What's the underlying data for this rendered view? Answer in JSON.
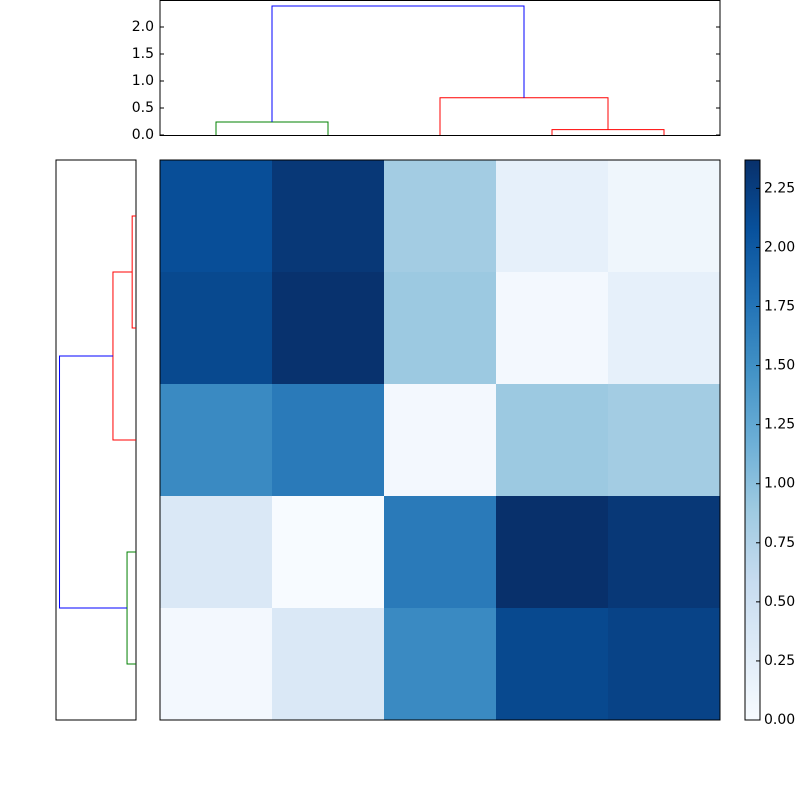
{
  "chart_data": {
    "type": "clustered-heatmap",
    "matrix": [
      [
        2.1,
        2.3,
        0.85,
        0.2,
        0.1
      ],
      [
        2.15,
        2.35,
        0.9,
        0.05,
        0.2
      ],
      [
        1.55,
        1.7,
        0.05,
        0.9,
        0.85
      ],
      [
        0.35,
        0.0,
        1.7,
        2.37,
        2.3
      ],
      [
        0.05,
        0.35,
        1.55,
        2.15,
        2.2
      ]
    ],
    "colormap": [
      "#f7fbff",
      "#deebf7",
      "#c6dbef",
      "#9ecae1",
      "#6baed6",
      "#4292c6",
      "#2171b5",
      "#08519c",
      "#08306b"
    ],
    "clim": [
      0,
      2.37
    ],
    "cticks": [
      {
        "value": 0,
        "label": "0.00"
      },
      {
        "value": 0.25,
        "label": "0.25"
      },
      {
        "value": 0.5,
        "label": "0.50"
      },
      {
        "value": 0.75,
        "label": "0.75"
      },
      {
        "value": 1,
        "label": "1.00"
      },
      {
        "value": 1.25,
        "label": "1.25"
      },
      {
        "value": 1.5,
        "label": "1.50"
      },
      {
        "value": 1.75,
        "label": "1.75"
      },
      {
        "value": 2,
        "label": "2.00"
      },
      {
        "value": 2.25,
        "label": "2.25"
      }
    ],
    "col_dendrogram": {
      "ylim": [
        0,
        2.5
      ],
      "yticks": [
        {
          "value": 0,
          "label": "0.0"
        },
        {
          "value": 0.5,
          "label": "0.5"
        },
        {
          "value": 1,
          "label": "1.0"
        },
        {
          "value": 1.5,
          "label": "1.5"
        },
        {
          "value": 2,
          "label": "2.0"
        }
      ],
      "links": [
        {
          "from": 0,
          "to": 1,
          "from_height": 0,
          "to_height": 0,
          "height": 0.24,
          "color": "green"
        },
        {
          "from": 3,
          "to": 4,
          "from_height": 0,
          "to_height": 0,
          "height": 0.1,
          "color": "red"
        },
        {
          "from": 2,
          "to": 3.5,
          "from_height": 0,
          "to_height": 0.1,
          "height": 0.69,
          "color": "red"
        },
        {
          "from": 0.5,
          "to": 2.75,
          "from_height": 0.24,
          "to_height": 0.69,
          "height": 2.39,
          "color": "blue"
        }
      ]
    },
    "row_dendrogram": {
      "xlim": [
        0,
        2.5
      ],
      "links": [
        {
          "from": 0,
          "to": 1,
          "from_height": 0,
          "to_height": 0,
          "height": 0.12,
          "color": "red"
        },
        {
          "from": 0.5,
          "to": 2,
          "from_height": 0.12,
          "to_height": 0,
          "height": 0.72,
          "color": "red"
        },
        {
          "from": 3,
          "to": 4,
          "from_height": 0,
          "to_height": 0,
          "height": 0.28,
          "color": "green"
        },
        {
          "from": 1.25,
          "to": 3.5,
          "from_height": 0.72,
          "to_height": 0.28,
          "height": 2.39,
          "color": "blue"
        }
      ]
    }
  }
}
